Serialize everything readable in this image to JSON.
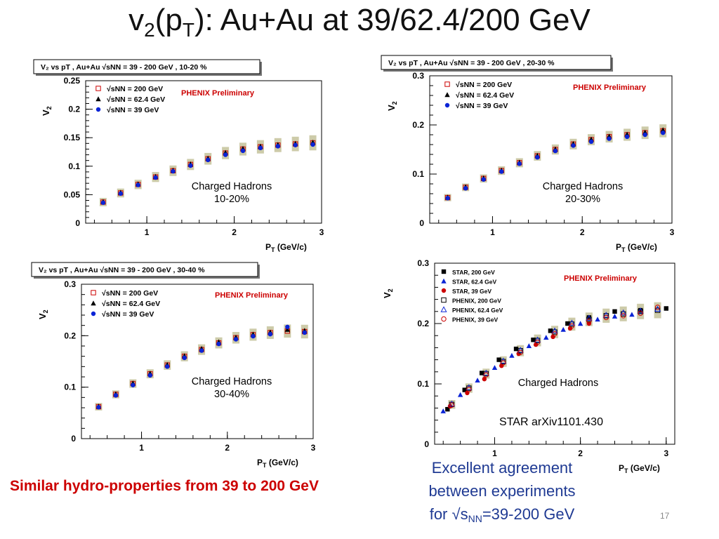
{
  "slide": {
    "title_pre": "v",
    "title_sub1": "2",
    "title_mid": "(p",
    "title_sub2": "T",
    "title_post": "): Au+Au at 39/62.4/200 GeV",
    "conclusion": "Similar hydro-properties from 39 to 200 GeV",
    "agreement_line1": "Excellent agreement",
    "agreement_line2": "between experiments",
    "agreement_line3_pre": "for √s",
    "agreement_line3_sub": "NN",
    "agreement_line3_post": "=39-200 GeV",
    "page_number": "17"
  },
  "colors": {
    "red": "#cc0000",
    "blue": "#0b24d6",
    "black": "#000000",
    "band": "#c8c5a0",
    "title_blue": "#1f3a93"
  },
  "chart_data": [
    {
      "type": "scatter",
      "panel": "10-20%",
      "banner": "V₂ vs pT , Au+Au  √sNN = 39 - 200 GeV , 10-20 %",
      "watermark": "PHENIX Preliminary",
      "annotation": [
        "Charged Hadrons",
        "10-20%"
      ],
      "xlabel": "PT (GeV/c)",
      "ylabel": "V2",
      "xlim": [
        0.3,
        3.0
      ],
      "ylim": [
        0,
        0.25
      ],
      "xticks": [
        1,
        2,
        3
      ],
      "yticks": [
        0,
        0.05,
        0.1,
        0.15,
        0.2,
        0.25
      ],
      "ytick_labels": [
        "0",
        "0.05",
        "0.1",
        "0.15",
        "0.2",
        "0.25"
      ],
      "legend": [
        "√sNN = 200 GeV",
        "√sNN = 62.4 GeV",
        "√sNN = 39 GeV"
      ],
      "series": [
        {
          "name": "√sNN = 200 GeV",
          "marker": "open-square-red",
          "x": [
            0.5,
            0.7,
            0.9,
            1.1,
            1.3,
            1.5,
            1.7,
            1.9,
            2.1,
            2.3,
            2.5,
            2.7,
            2.9
          ],
          "y": [
            0.037,
            0.053,
            0.068,
            0.081,
            0.092,
            0.103,
            0.113,
            0.123,
            0.13,
            0.134,
            0.137,
            0.139,
            0.141
          ]
        },
        {
          "name": "√sNN = 62.4 GeV",
          "marker": "filled-triangle-black",
          "x": [
            0.5,
            0.7,
            0.9,
            1.1,
            1.3,
            1.5,
            1.7,
            1.9,
            2.1,
            2.3,
            2.5,
            2.7,
            2.9
          ],
          "y": [
            0.038,
            0.054,
            0.069,
            0.082,
            0.093,
            0.104,
            0.114,
            0.124,
            0.131,
            0.135,
            0.138,
            0.14,
            0.142
          ]
        },
        {
          "name": "√sNN = 39 GeV",
          "marker": "filled-circle-blue",
          "x": [
            0.5,
            0.7,
            0.9,
            1.1,
            1.3,
            1.5,
            1.7,
            1.9,
            2.1,
            2.3,
            2.5,
            2.7,
            2.9
          ],
          "y": [
            0.036,
            0.052,
            0.067,
            0.08,
            0.091,
            0.101,
            0.111,
            0.12,
            0.127,
            0.132,
            0.135,
            0.137,
            0.138
          ]
        }
      ]
    },
    {
      "type": "scatter",
      "panel": "20-30%",
      "banner": "V₂ vs pT , Au+Au  √sNN = 39 - 200 GeV , 20-30 %",
      "watermark": "PHENIX Preliminary",
      "annotation": [
        "Charged Hadrons",
        "20-30%"
      ],
      "xlabel": "PT (GeV/c)",
      "ylabel": "V2",
      "xlim": [
        0.3,
        3.0
      ],
      "ylim": [
        0,
        0.3
      ],
      "xticks": [
        1,
        2,
        3
      ],
      "yticks": [
        0,
        0.1,
        0.2,
        0.3
      ],
      "ytick_labels": [
        "0",
        "0.1",
        "0.2",
        "0.3"
      ],
      "legend": [
        "√sNN = 200 GeV",
        "√sNN = 62.4 GeV",
        "√sNN = 39 GeV"
      ],
      "series": [
        {
          "name": "√sNN = 200 GeV",
          "marker": "open-square-red",
          "x": [
            0.5,
            0.7,
            0.9,
            1.1,
            1.3,
            1.5,
            1.7,
            1.9,
            2.1,
            2.3,
            2.5,
            2.7,
            2.9
          ],
          "y": [
            0.052,
            0.073,
            0.091,
            0.107,
            0.123,
            0.137,
            0.15,
            0.161,
            0.17,
            0.176,
            0.18,
            0.184,
            0.188
          ]
        },
        {
          "name": "√sNN = 62.4 GeV",
          "marker": "filled-triangle-black",
          "x": [
            0.5,
            0.7,
            0.9,
            1.1,
            1.3,
            1.5,
            1.7,
            1.9,
            2.1,
            2.3,
            2.5,
            2.7,
            2.9
          ],
          "y": [
            0.053,
            0.074,
            0.092,
            0.108,
            0.124,
            0.138,
            0.151,
            0.162,
            0.171,
            0.177,
            0.181,
            0.185,
            0.19
          ]
        },
        {
          "name": "√sNN = 39 GeV",
          "marker": "filled-circle-blue",
          "x": [
            0.5,
            0.7,
            0.9,
            1.1,
            1.3,
            1.5,
            1.7,
            1.9,
            2.1,
            2.3,
            2.5,
            2.7,
            2.9
          ],
          "y": [
            0.051,
            0.071,
            0.089,
            0.105,
            0.121,
            0.134,
            0.147,
            0.158,
            0.166,
            0.172,
            0.176,
            0.18,
            0.184
          ]
        }
      ]
    },
    {
      "type": "scatter",
      "panel": "30-40%",
      "banner": "V₂ vs pT , Au+Au  √sNN = 39 - 200 GeV , 30-40 %",
      "watermark": "PHENIX Preliminary",
      "annotation": [
        "Charged Hadrons",
        "30-40%"
      ],
      "xlabel": "PT (GeV/c)",
      "ylabel": "V2",
      "xlim": [
        0.3,
        3.0
      ],
      "ylim": [
        0,
        0.3
      ],
      "xticks": [
        1,
        2,
        3
      ],
      "yticks": [
        0,
        0.1,
        0.2,
        0.3
      ],
      "ytick_labels": [
        "0",
        "0.1",
        "0.2",
        "0.3"
      ],
      "legend": [
        "√sNN = 200 GeV",
        "√sNN = 62.4 GeV",
        "√sNN = 39 GeV"
      ],
      "series": [
        {
          "name": "√sNN = 200 GeV",
          "marker": "open-square-red",
          "x": [
            0.5,
            0.7,
            0.9,
            1.1,
            1.3,
            1.5,
            1.7,
            1.9,
            2.1,
            2.3,
            2.5,
            2.7,
            2.9
          ],
          "y": [
            0.062,
            0.086,
            0.107,
            0.126,
            0.143,
            0.16,
            0.173,
            0.186,
            0.196,
            0.202,
            0.206,
            0.209,
            0.208
          ]
        },
        {
          "name": "√sNN = 62.4 GeV",
          "marker": "filled-triangle-black",
          "x": [
            0.5,
            0.7,
            0.9,
            1.1,
            1.3,
            1.5,
            1.7,
            1.9,
            2.1,
            2.3,
            2.5,
            2.7,
            2.9
          ],
          "y": [
            0.063,
            0.087,
            0.108,
            0.127,
            0.144,
            0.161,
            0.175,
            0.188,
            0.197,
            0.203,
            0.207,
            0.212,
            0.21
          ]
        },
        {
          "name": "√sNN = 39 GeV",
          "marker": "filled-circle-blue",
          "x": [
            0.5,
            0.7,
            0.9,
            1.1,
            1.3,
            1.5,
            1.7,
            1.9,
            2.1,
            2.3,
            2.5,
            2.7,
            2.9
          ],
          "y": [
            0.061,
            0.084,
            0.104,
            0.123,
            0.14,
            0.157,
            0.171,
            0.184,
            0.193,
            0.199,
            0.203,
            0.217,
            0.206
          ]
        }
      ]
    },
    {
      "type": "scatter",
      "panel": "combined",
      "watermark": "PHENIX Preliminary",
      "annotation": [
        "Charged Hadrons"
      ],
      "reference": "STAR arXiv1101.430",
      "xlabel": "PT (GeV/c)",
      "ylabel": "V2",
      "xlim": [
        0.3,
        3.1
      ],
      "ylim": [
        0,
        0.3
      ],
      "xticks": [
        1,
        2,
        3
      ],
      "yticks": [
        0,
        0.1,
        0.2,
        0.3
      ],
      "ytick_labels": [
        "0",
        "0.1",
        "0.2",
        "0.3"
      ],
      "legend": [
        "STAR,  200 GeV",
        "STAR, 62.4  GeV",
        "STAR, 39  GeV",
        "PHENIX,  200 GeV",
        "PHENIX, 62.4  GeV",
        "PHENIX, 39  GeV"
      ],
      "series": [
        {
          "name": "STAR,  200 GeV",
          "marker": "filled-square-black",
          "x": [
            0.45,
            0.65,
            0.85,
            1.05,
            1.25,
            1.45,
            1.65,
            1.85,
            2.1,
            2.4,
            2.7,
            3.0
          ],
          "y": [
            0.058,
            0.09,
            0.118,
            0.14,
            0.158,
            0.173,
            0.188,
            0.2,
            0.21,
            0.22,
            0.222,
            0.225
          ]
        },
        {
          "name": "STAR, 62.4  GeV",
          "marker": "filled-triangle-blue",
          "x": [
            0.4,
            0.6,
            0.8,
            1.0,
            1.2,
            1.4,
            1.6,
            1.8,
            2.0,
            2.2,
            2.4,
            2.6
          ],
          "y": [
            0.055,
            0.082,
            0.106,
            0.127,
            0.147,
            0.163,
            0.177,
            0.19,
            0.2,
            0.207,
            0.212,
            0.215
          ]
        },
        {
          "name": "STAR, 39  GeV",
          "marker": "filled-circle-red",
          "x": [
            0.48,
            0.68,
            0.88,
            1.08,
            1.28,
            1.48,
            1.68,
            1.88,
            2.1
          ],
          "y": [
            0.063,
            0.085,
            0.108,
            0.13,
            0.15,
            0.165,
            0.178,
            0.192,
            0.2
          ]
        },
        {
          "name": "PHENIX,  200 GeV",
          "marker": "open-square-black",
          "x": [
            0.5,
            0.7,
            0.9,
            1.1,
            1.3,
            1.5,
            1.7,
            1.9,
            2.1,
            2.3,
            2.5,
            2.7,
            2.9
          ],
          "y": [
            0.066,
            0.093,
            0.117,
            0.137,
            0.155,
            0.172,
            0.186,
            0.199,
            0.207,
            0.213,
            0.216,
            0.22,
            0.222
          ]
        },
        {
          "name": "PHENIX, 62.4  GeV",
          "marker": "open-triangle-blue",
          "x": [
            0.5,
            0.7,
            0.9,
            1.1,
            1.3,
            1.5,
            1.7,
            1.9,
            2.1,
            2.3,
            2.5,
            2.7,
            2.9
          ],
          "y": [
            0.067,
            0.094,
            0.118,
            0.138,
            0.156,
            0.173,
            0.188,
            0.201,
            0.209,
            0.214,
            0.218,
            0.221,
            0.224
          ]
        },
        {
          "name": "PHENIX, 39  GeV",
          "marker": "open-circle-red",
          "x": [
            0.5,
            0.7,
            0.9,
            1.1,
            1.3,
            1.5,
            1.7,
            1.9,
            2.1,
            2.3,
            2.5,
            2.7,
            2.9
          ],
          "y": [
            0.065,
            0.091,
            0.115,
            0.135,
            0.152,
            0.169,
            0.183,
            0.196,
            0.204,
            0.21,
            0.213,
            0.217,
            0.227
          ]
        }
      ]
    }
  ]
}
